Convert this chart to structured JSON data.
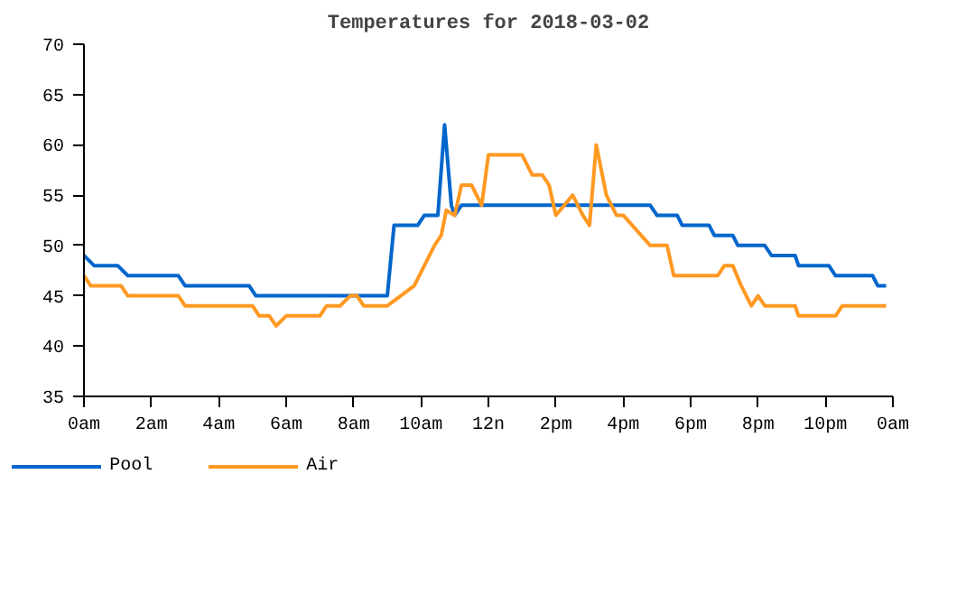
{
  "chart_data": {
    "type": "line",
    "title": "Temperatures for 2018-03-02",
    "xlim": [
      "2018-03-02T00:00",
      "2018-03-03T00:00"
    ],
    "ylim": [
      35,
      70
    ],
    "xticks": [
      {
        "value": "2018-03-02T00:00",
        "label": "0am"
      },
      {
        "value": "2018-03-02T02:00",
        "label": "2am"
      },
      {
        "value": "2018-03-02T04:00",
        "label": "4am"
      },
      {
        "value": "2018-03-02T06:00",
        "label": "6am"
      },
      {
        "value": "2018-03-02T08:00",
        "label": "8am"
      },
      {
        "value": "2018-03-02T10:00",
        "label": "10am"
      },
      {
        "value": "2018-03-02T12:00",
        "label": "12n"
      },
      {
        "value": "2018-03-02T14:00",
        "label": "2pm"
      },
      {
        "value": "2018-03-02T16:00",
        "label": "4pm"
      },
      {
        "value": "2018-03-02T18:00",
        "label": "6pm"
      },
      {
        "value": "2018-03-02T20:00",
        "label": "8pm"
      },
      {
        "value": "2018-03-02T22:00",
        "label": "10pm"
      },
      {
        "value": "2018-03-03T00:00",
        "label": "0am"
      }
    ],
    "yticks": [
      35,
      40,
      45,
      50,
      55,
      60,
      65,
      70
    ],
    "grid": false,
    "legend": "bottom",
    "marker": "none",
    "line_style": "solid",
    "series": [
      {
        "name": "Pool",
        "color": "#0066cc",
        "x": [
          "2018-03-02T00:00",
          "2018-03-02T00:18",
          "2018-03-02T01:00",
          "2018-03-02T01:18",
          "2018-03-02T02:48",
          "2018-03-02T03:00",
          "2018-03-02T04:54",
          "2018-03-02T05:06",
          "2018-03-02T09:00",
          "2018-03-02T09:12",
          "2018-03-02T09:54",
          "2018-03-02T10:06",
          "2018-03-02T10:30",
          "2018-03-02T10:42",
          "2018-03-02T10:54",
          "2018-03-02T11:00",
          "2018-03-02T11:12",
          "2018-03-02T16:48",
          "2018-03-02T17:00",
          "2018-03-02T17:36",
          "2018-03-02T17:45",
          "2018-03-02T18:33",
          "2018-03-02T18:42",
          "2018-03-02T19:15",
          "2018-03-02T19:24",
          "2018-03-02T20:12",
          "2018-03-02T20:24",
          "2018-03-02T21:06",
          "2018-03-02T21:12",
          "2018-03-02T22:06",
          "2018-03-02T22:18",
          "2018-03-02T23:24",
          "2018-03-02T23:33",
          "2018-03-02T23:48"
        ],
        "values": [
          49,
          48,
          48,
          47,
          47,
          46,
          46,
          45,
          45,
          52,
          52,
          53,
          53,
          62,
          54,
          53,
          54,
          54,
          53,
          53,
          52,
          52,
          51,
          51,
          50,
          50,
          49,
          49,
          48,
          48,
          47,
          47,
          46,
          46
        ]
      },
      {
        "name": "Air",
        "color": "#ff9922",
        "x": [
          "2018-03-02T00:00",
          "2018-03-02T00:12",
          "2018-03-02T01:06",
          "2018-03-02T01:18",
          "2018-03-02T02:48",
          "2018-03-02T03:00",
          "2018-03-02T05:00",
          "2018-03-02T05:12",
          "2018-03-02T05:30",
          "2018-03-02T05:42",
          "2018-03-02T06:00",
          "2018-03-02T07:00",
          "2018-03-02T07:12",
          "2018-03-02T07:36",
          "2018-03-02T07:54",
          "2018-03-02T08:06",
          "2018-03-02T08:18",
          "2018-03-02T09:00",
          "2018-03-02T09:24",
          "2018-03-02T09:48",
          "2018-03-02T10:06",
          "2018-03-02T10:24",
          "2018-03-02T10:36",
          "2018-03-02T10:45",
          "2018-03-02T11:00",
          "2018-03-02T11:12",
          "2018-03-02T11:30",
          "2018-03-02T11:48",
          "2018-03-02T12:00",
          "2018-03-02T13:00",
          "2018-03-02T13:18",
          "2018-03-02T13:36",
          "2018-03-02T13:48",
          "2018-03-02T14:00",
          "2018-03-02T14:30",
          "2018-03-02T14:48",
          "2018-03-02T15:00",
          "2018-03-02T15:12",
          "2018-03-02T15:30",
          "2018-03-02T15:48",
          "2018-03-02T16:00",
          "2018-03-02T16:48",
          "2018-03-02T17:18",
          "2018-03-02T17:30",
          "2018-03-02T18:48",
          "2018-03-02T19:00",
          "2018-03-02T19:15",
          "2018-03-02T19:30",
          "2018-03-02T19:48",
          "2018-03-02T20:00",
          "2018-03-02T20:12",
          "2018-03-02T21:06",
          "2018-03-02T21:12",
          "2018-03-02T22:18",
          "2018-03-02T22:30",
          "2018-03-02T23:48"
        ],
        "values": [
          47,
          46,
          46,
          45,
          45,
          44,
          44,
          43,
          43,
          42,
          43,
          43,
          44,
          44,
          45,
          45,
          44,
          44,
          45,
          46,
          48,
          50,
          51,
          53.5,
          53,
          56,
          56,
          54,
          59,
          59,
          57,
          57,
          56,
          53,
          55,
          53,
          52,
          60,
          55,
          53,
          53,
          50,
          50,
          47,
          47,
          48,
          48,
          46,
          44,
          45,
          44,
          44,
          43,
          43,
          44,
          44
        ]
      }
    ]
  }
}
